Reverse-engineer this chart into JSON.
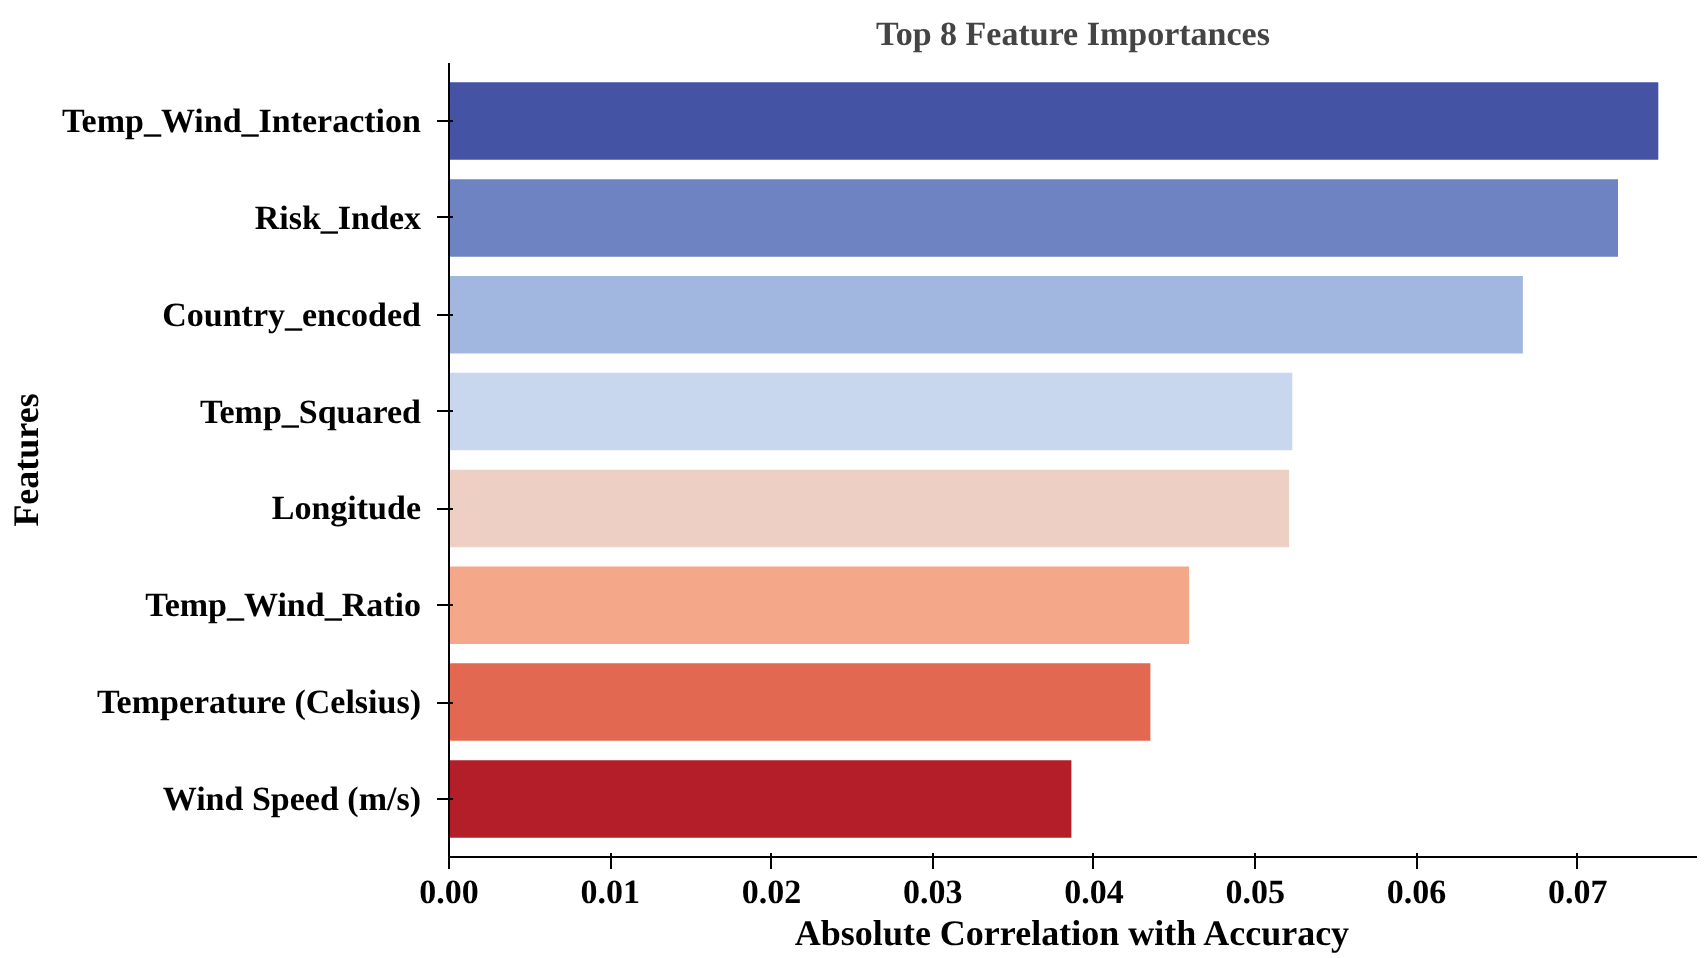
{
  "chart_data": {
    "type": "bar",
    "orientation": "horizontal",
    "title": "Top 8 Feature Importances",
    "xlabel": "Absolute Correlation with Accuracy",
    "ylabel": "Features",
    "categories": [
      "Temp_Wind_Interaction",
      "Risk_Index",
      "Country_encoded",
      "Temp_Squared",
      "Longitude",
      "Temp_Wind_Ratio",
      "Temperature (Celsius)",
      "Wind Speed (m/s)"
    ],
    "values": [
      0.075,
      0.0725,
      0.0666,
      0.0523,
      0.0521,
      0.0459,
      0.0435,
      0.0386
    ],
    "colors": [
      "#4453a3",
      "#6e83c2",
      "#a1b7e0",
      "#c8d6ee",
      "#edd0c3",
      "#f5a889",
      "#e26852",
      "#b31e29"
    ],
    "xlim": [
      0,
      0.0774
    ],
    "xticks": [
      {
        "value": 0,
        "label": "0.00"
      },
      {
        "value": 0.01,
        "label": "0.01"
      },
      {
        "value": 0.02,
        "label": "0.02"
      },
      {
        "value": 0.03,
        "label": "0.03"
      },
      {
        "value": 0.04,
        "label": "0.04"
      },
      {
        "value": 0.05,
        "label": "0.05"
      },
      {
        "value": 0.06,
        "label": "0.06"
      },
      {
        "value": 0.07,
        "label": "0.07"
      }
    ],
    "grid": false
  }
}
